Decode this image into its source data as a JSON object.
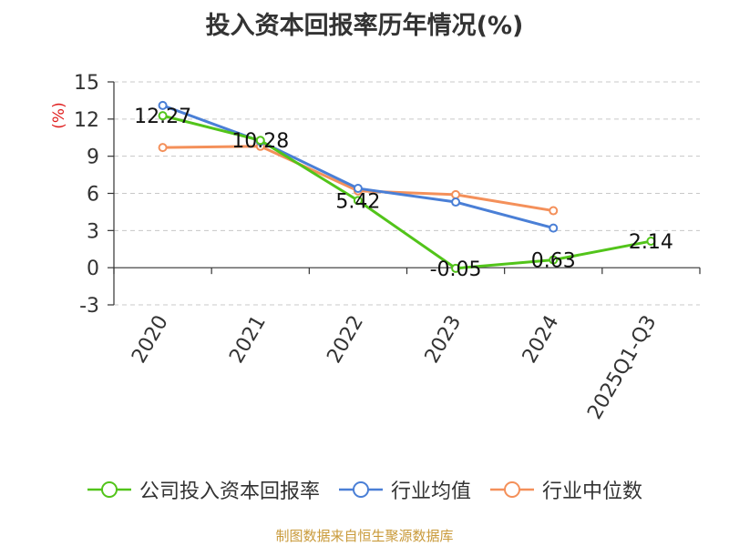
{
  "chart_data": {
    "type": "line",
    "title": "投入资本回报率历年情况(%)",
    "ylabel": "(%)",
    "xlabel": "",
    "categories": [
      "2020",
      "2021",
      "2022",
      "2023",
      "2024",
      "2025Q1-Q3"
    ],
    "yticks": [
      "15",
      "12",
      "9",
      "6",
      "3",
      "0",
      "-3"
    ],
    "ylim": [
      -3,
      15
    ],
    "grid": true,
    "legend_position": "bottom",
    "series": [
      {
        "name": "公司投入资本回报率",
        "color": "#52c41a",
        "values": [
          12.27,
          10.28,
          5.42,
          -0.05,
          0.63,
          2.14
        ],
        "labels": [
          "12.27",
          "10.28",
          "5.42",
          "-0.05",
          "0.63",
          "2.14"
        ]
      },
      {
        "name": "行业均值",
        "color": "#4a7fd6",
        "values": [
          13.1,
          10.2,
          6.4,
          5.3,
          3.2,
          null
        ]
      },
      {
        "name": "行业中位数",
        "color": "#f4905a",
        "values": [
          9.7,
          9.8,
          6.2,
          5.9,
          4.6,
          null
        ]
      }
    ]
  },
  "footer": {
    "source": "制图数据来自恒生聚源数据库"
  }
}
